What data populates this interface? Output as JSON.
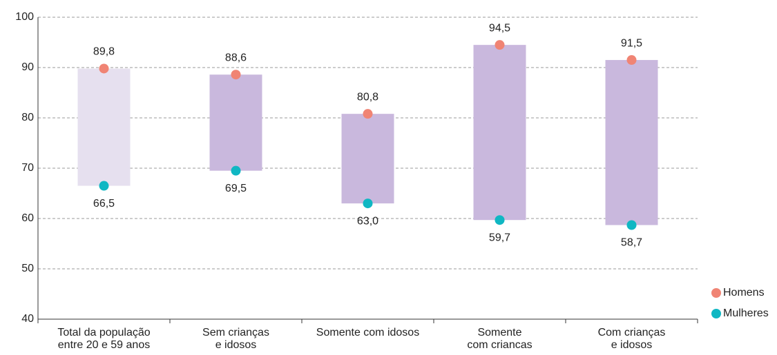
{
  "chart_data": {
    "type": "dumbbell",
    "categories": [
      [
        "Total da população",
        "entre 20 e 59 anos"
      ],
      [
        "Sem crianças",
        "e idosos"
      ],
      [
        "Somente com idosos"
      ],
      [
        "Somente",
        "com criancas"
      ],
      [
        "Com crianças",
        "e idosos"
      ]
    ],
    "range_colors": [
      "#e6e0ef",
      "#c9b8dd",
      "#c9b8dd",
      "#c9b8dd",
      "#c9b8dd"
    ],
    "series": [
      {
        "name": "Homens",
        "color": "#f08474",
        "values": [
          89.8,
          88.6,
          80.8,
          94.5,
          91.5
        ],
        "value_labels": [
          "89,8",
          "88,6",
          "80,8",
          "94,5",
          "91,5"
        ]
      },
      {
        "name": "Mulheres",
        "color": "#10b7c3",
        "values": [
          66.5,
          69.5,
          63.0,
          59.7,
          58.7
        ],
        "value_labels": [
          "66,5",
          "69,5",
          "63,0",
          "59,7",
          "58,7"
        ]
      }
    ],
    "ylim": [
      40,
      100
    ],
    "yticks": [
      40,
      50,
      60,
      70,
      80,
      90,
      100
    ],
    "grid": true,
    "legend": "lower right"
  }
}
